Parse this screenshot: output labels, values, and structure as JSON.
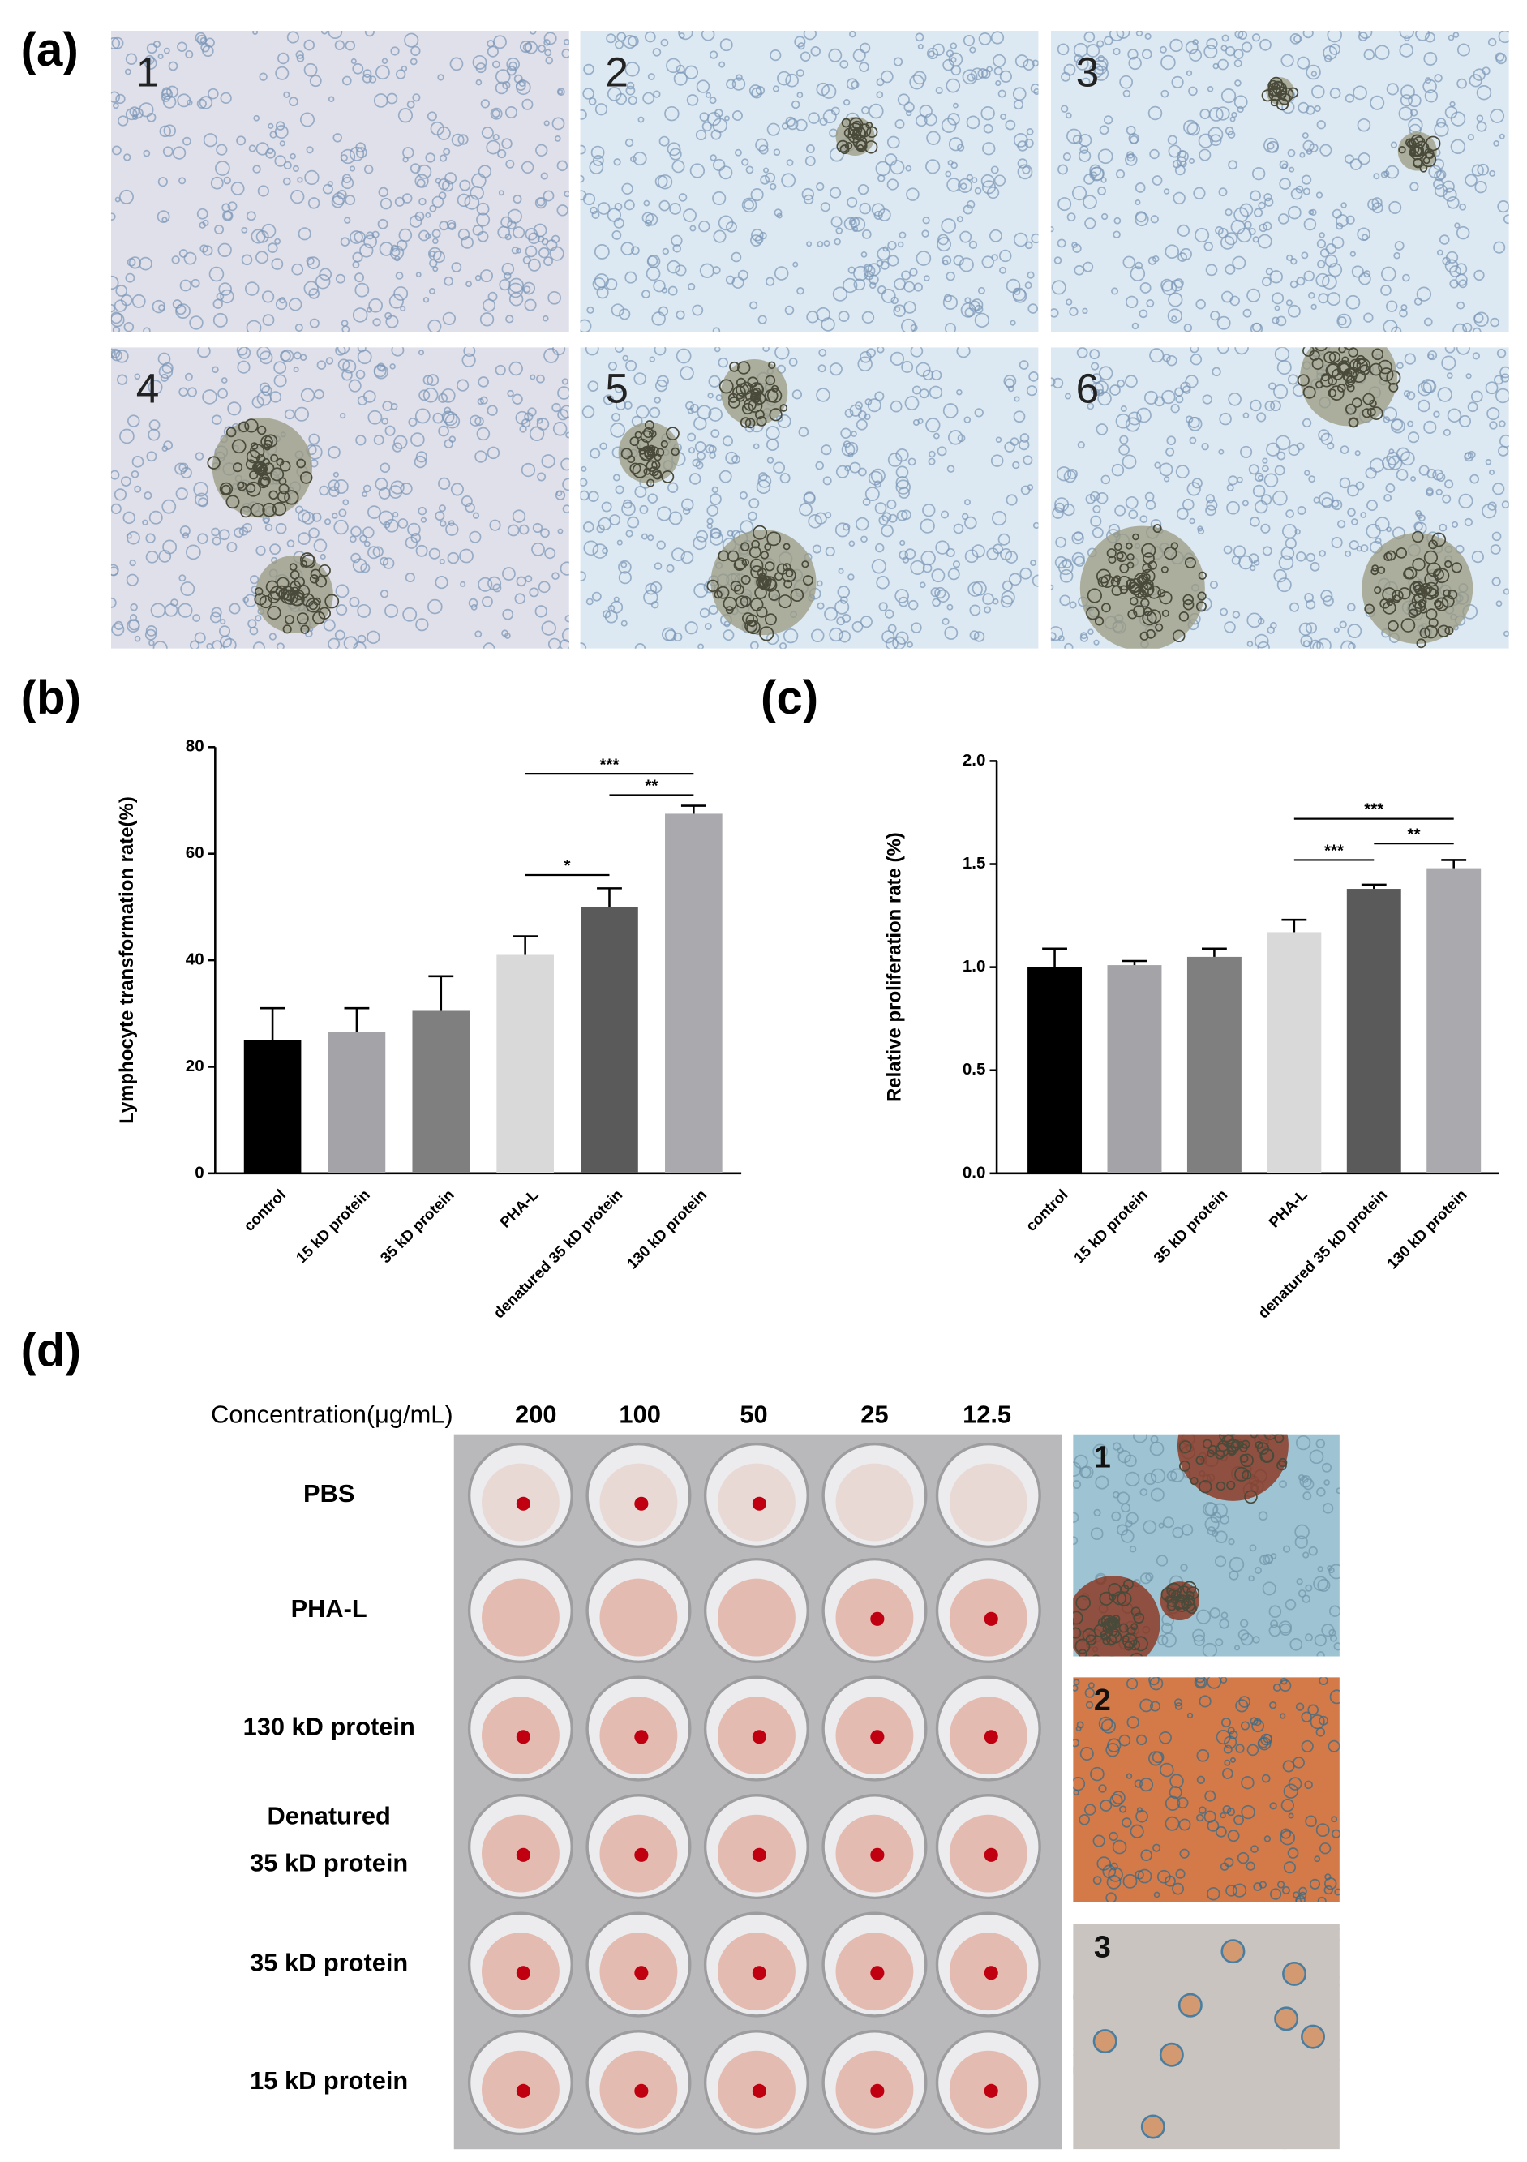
{
  "panel_labels": [
    "(a)",
    "(b)",
    "(c)",
    "(d)"
  ],
  "micrographs_a": [
    "1",
    "2",
    "3",
    "4",
    "5",
    "6"
  ],
  "chart_data": [
    {
      "type": "bar",
      "ylabel": "Lymphocyte transformation rate(%)",
      "categories": [
        "control",
        "15 kD protein",
        "35 kD protein",
        "PHA-L",
        "denatured 35 kD protein",
        "130 kD protein"
      ],
      "values": [
        25,
        26.5,
        30.5,
        41,
        50,
        67.5
      ],
      "errors": [
        6,
        4.5,
        6.5,
        3.5,
        3.5,
        1.5
      ],
      "colors": [
        "#000000",
        "#a3a3a8",
        "#7f7f7f",
        "#d9d9d9",
        "#5a5a5a",
        "#a9a9ae"
      ],
      "ylim": [
        0,
        80
      ],
      "yticks": [
        0,
        20,
        40,
        60,
        80
      ],
      "significance": [
        {
          "label": "***",
          "from": "PHA-L",
          "to": "130 kD protein",
          "y": 75
        },
        {
          "label": "**",
          "from": "denatured 35 kD protein",
          "to": "130 kD protein",
          "y": 71
        },
        {
          "label": "*",
          "from": "PHA-L",
          "to": "denatured 35 kD protein",
          "y": 56
        }
      ]
    },
    {
      "type": "bar",
      "ylabel": "Relative proliferation rate (%)",
      "categories": [
        "control",
        "15 kD protein",
        "35 kD protein",
        "PHA-L",
        "denatured 35 kD protein",
        "130 kD protein"
      ],
      "values": [
        1.0,
        1.01,
        1.05,
        1.17,
        1.38,
        1.48
      ],
      "errors": [
        0.09,
        0.02,
        0.04,
        0.06,
        0.02,
        0.04
      ],
      "colors": [
        "#000000",
        "#a3a3a8",
        "#7f7f7f",
        "#d9d9d9",
        "#5a5a5a",
        "#a9a9ae"
      ],
      "ylim": [
        0,
        2
      ],
      "yticks": [
        {
          "value": 0,
          "label": "0.0"
        },
        0.5,
        {
          "value": 1,
          "label": "1.0"
        },
        1.5,
        {
          "value": 2,
          "label": "2.0"
        }
      ],
      "significance": [
        {
          "label": "***",
          "from": "PHA-L",
          "to": "130 kD protein",
          "y": 1.72
        },
        {
          "label": "**",
          "from": "denatured 35 kD protein",
          "to": "130 kD protein",
          "y": 1.6
        },
        {
          "label": "***",
          "from": "PHA-L",
          "to": "denatured 35 kD protein",
          "y": 1.52
        }
      ]
    }
  ],
  "hemagglutination": {
    "header": "Concentration(μg/mL)",
    "concentrations": [
      "200",
      "100",
      "50",
      "25",
      "12.5"
    ],
    "rows": [
      [
        "PBS"
      ],
      [
        "PHA-L"
      ],
      [
        "130 kD protein"
      ],
      [
        "Denatured",
        "35 kD protein"
      ],
      [
        "35 kD protein"
      ],
      [
        "15 kD protein"
      ]
    ]
  },
  "micrographs_d": [
    "1",
    "2",
    "3"
  ]
}
